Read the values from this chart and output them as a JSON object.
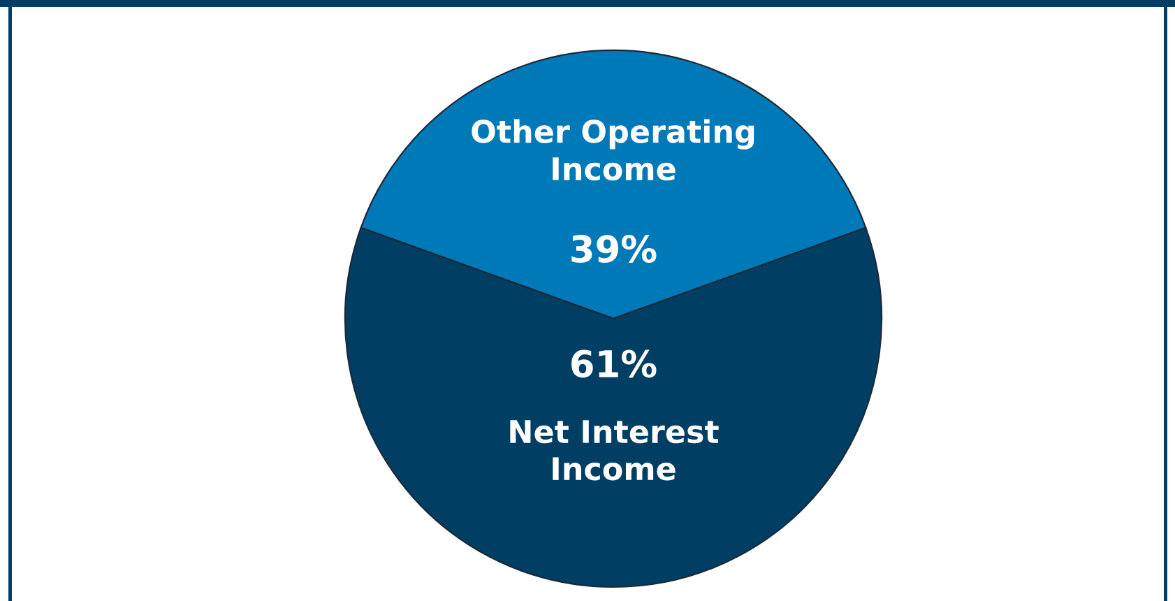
{
  "chart_data": {
    "type": "pie",
    "categories": [
      "Other Operating\nIncome",
      "Net Interest\nIncome"
    ],
    "values": [
      39,
      61
    ],
    "colors": [
      "#0079b8",
      "#003f63"
    ],
    "value_labels": [
      "39%",
      "61%"
    ]
  }
}
